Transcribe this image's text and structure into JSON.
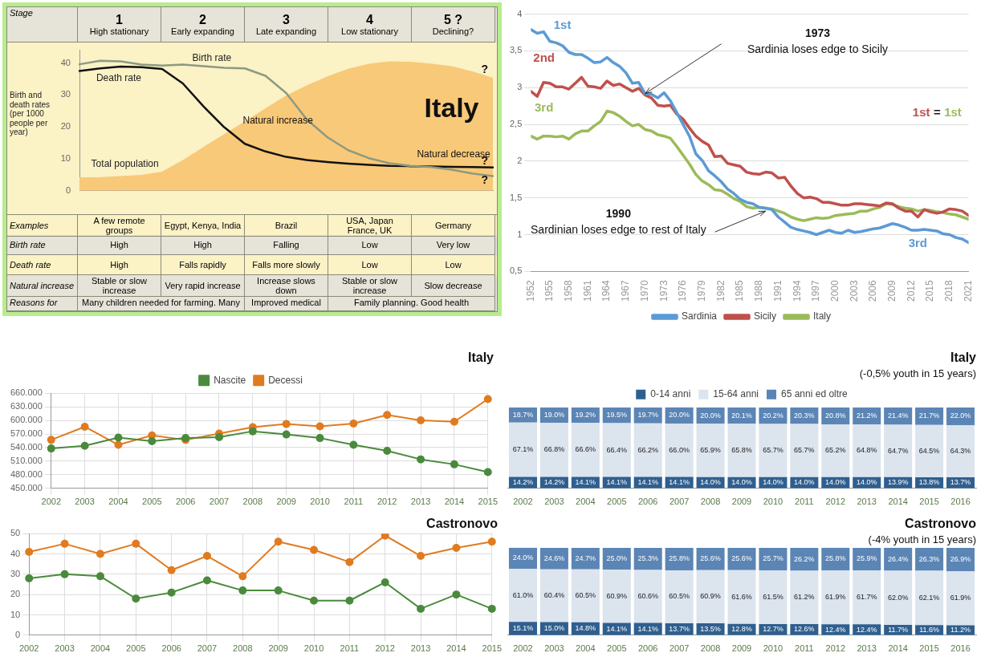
{
  "chart_data": [
    {
      "type": "line",
      "categories": [
        null,
        null,
        null,
        null,
        null,
        null,
        null,
        null,
        null,
        null,
        null,
        null,
        null,
        null,
        null,
        null,
        null,
        null,
        null,
        null,
        null
      ],
      "ylabel": "Birth and death rates (per 1000 people per year)",
      "ylim": [
        0,
        44
      ],
      "yticks": [
        0,
        10,
        20,
        30,
        40
      ],
      "series": [
        {
          "name": "Birth rate",
          "color": "#8d9a80",
          "values": [
            39.6,
            40.7,
            40.5,
            39.5,
            39.2,
            39.5,
            39,
            38.5,
            38.3,
            36,
            30.6,
            22.3,
            16.7,
            12.7,
            10.2,
            8.6,
            7.8,
            7.4,
            6.6,
            5.4,
            4.6
          ]
        },
        {
          "name": "Death rate",
          "color": "#111111",
          "values": [
            37.5,
            38.3,
            38.9,
            38.7,
            38.1,
            33.6,
            26.4,
            19.9,
            14.7,
            12.3,
            10.6,
            9.6,
            9,
            8.5,
            8.1,
            7.8,
            7.7,
            7.6,
            7.5,
            7.4,
            7.3
          ]
        },
        {
          "name": "Total population",
          "type": "area",
          "color": "#f8c978",
          "values": [
            4,
            4.1,
            4.4,
            4.8,
            5.8,
            9.4,
            13.5,
            17.5,
            21.5,
            25.6,
            29.6,
            32.8,
            35.6,
            38,
            39.6,
            40.3,
            40.2,
            39.6,
            38.8,
            37.2,
            35.2
          ]
        }
      ],
      "annotations": [
        "Natural increase",
        "Natural decrease",
        "?",
        "?",
        "?",
        "Italy",
        "Stage",
        "1\nHigh stationary",
        "2\nEarly expanding",
        "3\nLate expanding",
        "4\nLow stationary",
        "5 ?\nDeclining?",
        "Examples",
        "A few remote groups",
        "Egypt, Kenya, India",
        "Brazil",
        "USA, Japan France, UK",
        "Germany",
        "Birth rate",
        "High",
        "High",
        "Falling",
        "Low",
        "Very low",
        "Death rate",
        "High",
        "Falls rapidly",
        "Falls more slowly",
        "Low",
        "Low",
        "Natural increase",
        "Stable or slow increase",
        "Very rapid increase",
        "Increase slows down",
        "Stable or slow increase",
        "Slow decrease",
        "Reasons for",
        "Many children needed for farming. Many",
        "Improved medical",
        "Family planning. Good health"
      ]
    },
    {
      "type": "line",
      "x": [
        1952,
        1953,
        1954,
        1955,
        1956,
        1957,
        1958,
        1959,
        1960,
        1961,
        1962,
        1963,
        1964,
        1965,
        1966,
        1967,
        1968,
        1969,
        1970,
        1971,
        1972,
        1973,
        1974,
        1975,
        1976,
        1977,
        1978,
        1979,
        1980,
        1981,
        1982,
        1983,
        1984,
        1985,
        1986,
        1987,
        1988,
        1989,
        1990,
        1991,
        1992,
        1993,
        1994,
        1995,
        1996,
        1997,
        1998,
        1999,
        2000,
        2001,
        2002,
        2003,
        2004,
        2005,
        2006,
        2007,
        2008,
        2009,
        2010,
        2011,
        2012,
        2013,
        2014,
        2015,
        2016,
        2017,
        2018,
        2019,
        2020,
        2021
      ],
      "xlim": [
        1952,
        2021
      ],
      "xticks": [
        1952,
        1955,
        1958,
        1961,
        1964,
        1967,
        1970,
        1973,
        1976,
        1979,
        1982,
        1985,
        1988,
        1991,
        1994,
        1997,
        2000,
        2003,
        2006,
        2009,
        2012,
        2015,
        2018,
        2021
      ],
      "ylim": [
        0.5,
        4
      ],
      "yticks": [
        {
          "value": 0.5,
          "label": "0,5"
        },
        1,
        {
          "value": 1.5,
          "label": "1,5"
        },
        2,
        {
          "value": 2.5,
          "label": "2,5"
        },
        3,
        {
          "value": 3.5,
          "label": "3,5"
        },
        4
      ],
      "grid": "y",
      "legend": "bottom",
      "series": [
        {
          "name": "Sardinia",
          "color": "#5b9bd5",
          "values": [
            3.79,
            3.74,
            3.76,
            3.63,
            3.61,
            3.57,
            3.48,
            3.45,
            3.45,
            3.4,
            3.34,
            3.35,
            3.41,
            3.34,
            3.29,
            3.2,
            3.06,
            3.07,
            2.92,
            2.91,
            2.86,
            2.93,
            2.82,
            2.66,
            2.5,
            2.34,
            2.1,
            2.01,
            1.87,
            1.8,
            1.72,
            1.62,
            1.56,
            1.48,
            1.44,
            1.42,
            1.37,
            1.36,
            1.34,
            1.24,
            1.17,
            1.1,
            1.07,
            1.05,
            1.03,
            1.0,
            1.03,
            1.06,
            1.03,
            1.02,
            1.06,
            1.03,
            1.04,
            1.06,
            1.08,
            1.09,
            1.12,
            1.15,
            1.13,
            1.1,
            1.06,
            1.06,
            1.07,
            1.06,
            1.05,
            1.01,
            1.0,
            0.96,
            0.94,
            0.89
          ]
        },
        {
          "name": "Sicily",
          "color": "#c0504d",
          "values": [
            2.95,
            2.88,
            3.07,
            3.06,
            3.01,
            3.01,
            2.98,
            3.06,
            3.14,
            3.02,
            3.01,
            2.99,
            3.09,
            3.03,
            3.05,
            3.0,
            2.95,
            2.99,
            2.9,
            2.86,
            2.76,
            2.75,
            2.76,
            2.64,
            2.57,
            2.45,
            2.34,
            2.27,
            2.22,
            2.06,
            2.07,
            1.97,
            1.95,
            1.93,
            1.85,
            1.83,
            1.82,
            1.85,
            1.84,
            1.77,
            1.78,
            1.66,
            1.56,
            1.5,
            1.51,
            1.49,
            1.44,
            1.44,
            1.42,
            1.4,
            1.4,
            1.42,
            1.42,
            1.41,
            1.4,
            1.39,
            1.43,
            1.42,
            1.36,
            1.32,
            1.32,
            1.24,
            1.34,
            1.31,
            1.29,
            1.31,
            1.35,
            1.34,
            1.32,
            1.26
          ]
        },
        {
          "name": "Italy",
          "color": "#9bbb59",
          "values": [
            2.34,
            2.3,
            2.34,
            2.34,
            2.33,
            2.34,
            2.3,
            2.37,
            2.41,
            2.41,
            2.48,
            2.54,
            2.68,
            2.66,
            2.61,
            2.54,
            2.48,
            2.5,
            2.43,
            2.41,
            2.36,
            2.34,
            2.31,
            2.2,
            2.08,
            1.96,
            1.82,
            1.73,
            1.68,
            1.61,
            1.6,
            1.55,
            1.49,
            1.45,
            1.38,
            1.36,
            1.37,
            1.36,
            1.35,
            1.32,
            1.29,
            1.24,
            1.21,
            1.19,
            1.21,
            1.23,
            1.22,
            1.23,
            1.26,
            1.27,
            1.28,
            1.29,
            1.32,
            1.32,
            1.35,
            1.37,
            1.42,
            1.41,
            1.38,
            1.36,
            1.35,
            1.32,
            1.34,
            1.33,
            1.31,
            1.3,
            1.28,
            1.27,
            1.24,
            1.21
          ]
        }
      ],
      "annotations": [
        "1st",
        "2nd",
        "3rd",
        "1st",
        "=",
        "1st",
        "3rd",
        "1973\nSardinia loses edge to Sicily",
        {
          "text": "1990\nSardinian loses edge to rest of Italy",
          "x": 1989,
          "y": 1.32
        }
      ]
    },
    {
      "type": "line",
      "title": "Italy",
      "categories": [
        "2002",
        "2003",
        "2004",
        "2005",
        "2006",
        "2007",
        "2008",
        "2009",
        "2010",
        "2011",
        "2012",
        "2013",
        "2014",
        "2015"
      ],
      "ylim": [
        450,
        660
      ],
      "yticks": [
        {
          "value": 450,
          "label": "450.000"
        },
        {
          "value": 480,
          "label": "480.000"
        },
        {
          "value": 510,
          "label": "510.000"
        },
        {
          "value": 540,
          "label": "540.000"
        },
        {
          "value": 570,
          "label": "570.000"
        },
        {
          "value": 600,
          "label": "600.000"
        },
        {
          "value": 630,
          "label": "630.000"
        },
        {
          "value": 660,
          "label": "660.000"
        }
      ],
      "grid": true,
      "legend": "top",
      "marker": "circle",
      "series": [
        {
          "name": "Nascite",
          "color": "#4a8a3c",
          "values": [
            538,
            544,
            562,
            554,
            561,
            563,
            576,
            569,
            561,
            546,
            533,
            514,
            503,
            486
          ]
        },
        {
          "name": "Decessi",
          "color": "#e07b20",
          "values": [
            557,
            586,
            546,
            567,
            557,
            571,
            585,
            592,
            587,
            593,
            612,
            600,
            597,
            647
          ]
        }
      ]
    },
    {
      "type": "line",
      "title": "Castronovo",
      "categories": [
        "2002",
        "2003",
        "2004",
        "2005",
        "2006",
        "2007",
        "2008",
        "2009",
        "2010",
        "2011",
        "2012",
        "2013",
        "2014",
        "2015"
      ],
      "ylim": [
        0,
        50
      ],
      "yticks": [
        0,
        10,
        20,
        30,
        40,
        50
      ],
      "grid": true,
      "marker": "circle",
      "series": [
        {
          "color": "#4a8a3c",
          "values": [
            28,
            30,
            29,
            18,
            21,
            27,
            22,
            22,
            17,
            17,
            26,
            13,
            20,
            13
          ]
        },
        {
          "color": "#e07b20",
          "values": [
            41,
            45,
            40,
            45,
            32,
            39,
            29,
            46,
            42,
            36,
            49,
            39,
            43,
            46
          ]
        }
      ]
    },
    {
      "type": "bar",
      "title": "Italy",
      "subtitle": "(-0,5% youth in 15 years)",
      "stacked": true,
      "legend": "top",
      "categories": [
        "2002",
        "2003",
        "2004",
        "2005",
        "2006",
        "2007",
        "2008",
        "2009",
        "2010",
        "2011",
        "2012",
        "2013",
        "2014",
        "2015",
        "2016"
      ],
      "series": [
        {
          "name": "0-14 anni",
          "color": "#2f5f8f",
          "values": [
            14.2,
            14.2,
            14.1,
            14.1,
            14.1,
            14.1,
            14.0,
            14.0,
            14.0,
            14.0,
            14.0,
            14.0,
            13.9,
            13.8,
            13.7
          ],
          "value_labels": [
            "14.2%",
            "14.2%",
            "14.1%",
            "14.1%",
            "14.1%",
            "14.1%",
            "14.0%",
            "14.0%",
            "14.0%",
            "14.0%",
            "14.0%",
            "14.0%",
            "13.9%",
            "13.8%",
            "13.7%"
          ]
        },
        {
          "name": "15-64 anni",
          "color": "#dce4ee",
          "values": [
            67.1,
            66.8,
            66.6,
            66.4,
            66.2,
            66.0,
            65.9,
            65.8,
            65.7,
            65.7,
            65.2,
            64.8,
            64.7,
            64.5,
            64.3
          ],
          "value_labels": [
            "67.1%",
            "66.8%",
            "66.6%",
            "66.4%",
            "66.2%",
            "66.0%",
            "65.9%",
            "65.8%",
            "65.7%",
            "65.7%",
            "65.2%",
            "64.8%",
            "64.7%",
            "64.5%",
            "64.3%"
          ]
        },
        {
          "name": "65 anni ed oltre",
          "color": "#5b85b5",
          "values": [
            18.7,
            19.0,
            19.2,
            19.5,
            19.7,
            20.0,
            20.0,
            20.1,
            20.2,
            20.3,
            20.8,
            21.2,
            21.4,
            21.7,
            22.0
          ],
          "value_labels": [
            "18.7%",
            "19.0%",
            "19.2%",
            "19.5%",
            "19.7%",
            "20.0%",
            "20.0%",
            "20.1%",
            "20.2%",
            "20.3%",
            "20.8%",
            "21.2%",
            "21.4%",
            "21.7%",
            "22.0%"
          ]
        }
      ]
    },
    {
      "type": "bar",
      "title": "Castronovo",
      "subtitle": "(-4% youth in 15 years)",
      "stacked": true,
      "categories": [
        "2002",
        "2003",
        "2004",
        "2005",
        "2006",
        "2007",
        "2008",
        "2009",
        "2010",
        "2011",
        "2012",
        "2013",
        "2014",
        "2015",
        "2016"
      ],
      "series": [
        {
          "color": "#2f5f8f",
          "values": [
            15.1,
            15.0,
            14.8,
            14.1,
            14.1,
            13.7,
            13.5,
            12.8,
            12.7,
            12.6,
            12.4,
            12.4,
            11.7,
            11.6,
            11.2
          ],
          "value_labels": [
            "15.1%",
            "15.0%",
            "14.8%",
            "14.1%",
            "14.1%",
            "13.7%",
            "13.5%",
            "12.8%",
            "12.7%",
            "12.6%",
            "12.4%",
            "12.4%",
            "11.7%",
            "11.6%",
            "11.2%"
          ]
        },
        {
          "color": "#dce4ee",
          "values": [
            61.0,
            60.4,
            60.5,
            60.9,
            60.6,
            60.5,
            60.9,
            61.6,
            61.5,
            61.2,
            61.9,
            61.7,
            62.0,
            62.1,
            61.9
          ],
          "value_labels": [
            "61.0%",
            "60.4%",
            "60.5%",
            "60.9%",
            "60.6%",
            "60.5%",
            "60.9%",
            "61.6%",
            "61.5%",
            "61.2%",
            "61.9%",
            "61.7%",
            "62.0%",
            "62.1%",
            "61.9%"
          ]
        },
        {
          "color": "#5b85b5",
          "values": [
            24.0,
            24.6,
            24.7,
            25.0,
            25.3,
            25.8,
            25.6,
            25.6,
            25.7,
            26.2,
            25.8,
            25.9,
            26.4,
            26.3,
            26.9
          ],
          "value_labels": [
            "24.0%",
            "24.6%",
            "24.7%",
            "25.0%",
            "25.3%",
            "25.8%",
            "25.6%",
            "25.6%",
            "25.7%",
            "26.2%",
            "25.8%",
            "25.9%",
            "26.4%",
            "26.3%",
            "26.9%"
          ]
        }
      ]
    }
  ]
}
